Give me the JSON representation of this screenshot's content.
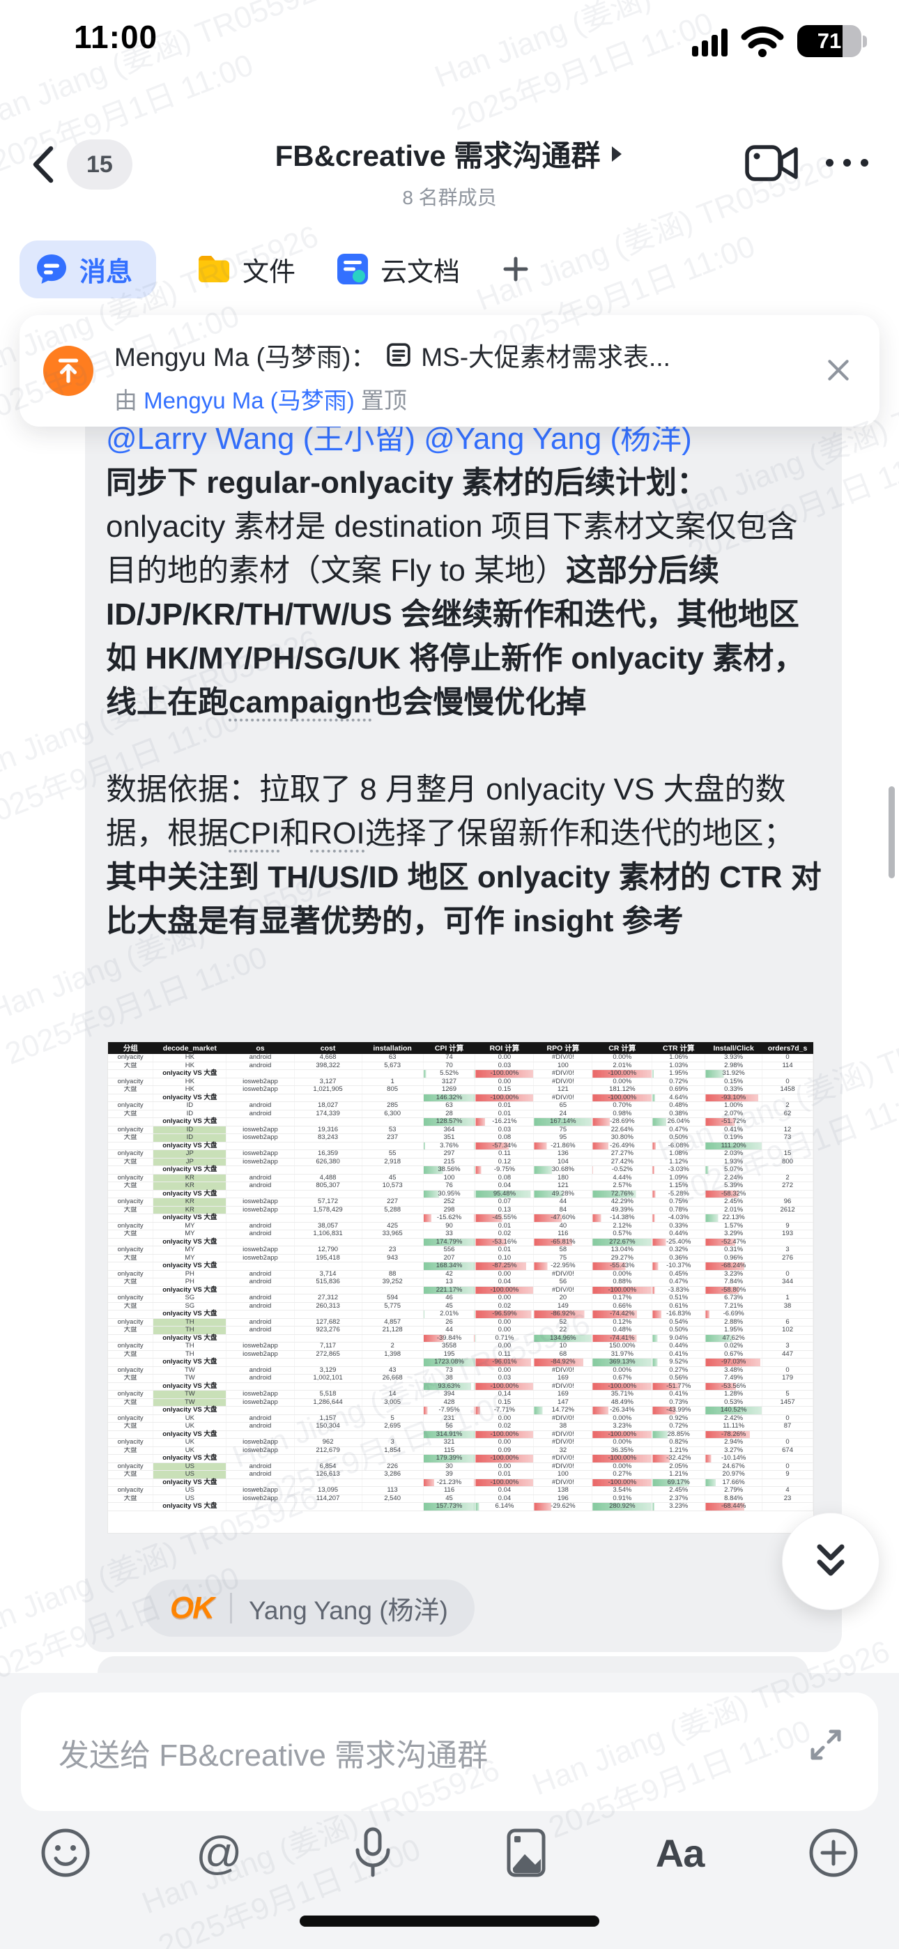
{
  "status_bar": {
    "time": "11:00",
    "battery_percent": "71"
  },
  "nav": {
    "unread_count": "15",
    "title": "FB&creative 需求沟通群",
    "subtitle": "8 名群成员"
  },
  "tabs": [
    {
      "label": "消息",
      "active": true
    },
    {
      "label": "文件",
      "active": false
    },
    {
      "label": "云文档",
      "active": false
    }
  ],
  "pinned": {
    "line1_name": "Mengyu Ma (马梦雨)：",
    "line1_doc": "MS-大促素材需求表...",
    "line2_prefix": "由 ",
    "line2_link": "Mengyu Ma (马梦雨)",
    "line2_suffix": " 置顶"
  },
  "message": {
    "mention": "@Larry Wang (王小留) @Yang Yang (杨洋)",
    "paragraphs": [
      [
        {
          "t": "同步下 regular-onlyacity 素材的后续计划：",
          "b": true,
          "br": true
        },
        {
          "t": "onlyacity 素材是 destination 项目下素材文案仅包含目的地的素材（文案 Fly to 某地）"
        },
        {
          "t": "这部分后续 ID/JP/KR/TH/TW/US 会继续新作和迭代，其他地区如 HK/MY/PH/SG/UK 将停止新作 onlyacity 素材，线上在跑",
          "b": true
        },
        {
          "t": "campaign",
          "b": true,
          "u": true
        },
        {
          "t": "也会慢慢优化掉",
          "b": true
        }
      ],
      [
        {
          "t": "数据依据：拉取了 8 月整月 onlyacity VS 大盘的数据，根据"
        },
        {
          "t": "CPI",
          "u": true
        },
        {
          "t": "和"
        },
        {
          "t": "ROI",
          "u": true
        },
        {
          "t": "选择了保留新作和迭代的地区；"
        },
        {
          "t": "其中关注到 TH/US/ID 地区 onlyacity 素材的 CTR 对比大盘是有显著优势的，可作 insight 参考",
          "b": true
        }
      ]
    ],
    "reaction": {
      "emoji": "OK",
      "names": "Yang Yang (杨洋)"
    },
    "spreadsheet": {
      "headers": [
        "分组",
        "decode_market",
        "os",
        "cost",
        "installation",
        "CPI 计算",
        "ROI 计算",
        "RPO 计算",
        "CR 计算",
        "CTR 计算",
        "Install/Click",
        "orders7d_s"
      ],
      "row_labels": {
        "a": "onlyacity",
        "b": "大盘",
        "vs": "onlyacity VS 大盘"
      },
      "groups": [
        {
          "market": "HK",
          "os": "android",
          "hl": false,
          "a": [
            "4,668",
            "63",
            "74",
            "0.00",
            "#DIV/0!",
            "0.00%",
            "1.06%",
            "3.93%",
            "0"
          ],
          "b": [
            "398,322",
            "5,673",
            "70",
            "0.03",
            "100",
            "2.01%",
            "1.03%",
            "2.98%",
            "114"
          ],
          "vs": [
            "5.52%",
            "-100.00%",
            "#DIV/0!",
            "-100.00%",
            "1.95%",
            "31.92%"
          ]
        },
        {
          "market": "HK",
          "os": "iosweb2app",
          "hl": false,
          "a": [
            "3,127",
            "1",
            "3127",
            "0.00",
            "#DIV/0!",
            "0.00%",
            "0.72%",
            "0.15%",
            "0"
          ],
          "b": [
            "1,021,905",
            "805",
            "1269",
            "0.15",
            "121",
            "181.12%",
            "0.69%",
            "0.33%",
            "1458"
          ],
          "vs": [
            "146.32%",
            "-100.00%",
            "#DIV/0!",
            "-100.00%",
            "4.64%",
            "-93.10%"
          ]
        },
        {
          "market": "ID",
          "os": "android",
          "hl": false,
          "a": [
            "18,027",
            "285",
            "63",
            "0.01",
            "65",
            "0.70%",
            "0.48%",
            "1.00%",
            "2"
          ],
          "b": [
            "174,339",
            "6,300",
            "28",
            "0.01",
            "24",
            "0.98%",
            "0.38%",
            "2.07%",
            "62"
          ],
          "vs": [
            "128.57%",
            "-16.21%",
            "167.14%",
            "-28.69%",
            "26.04%",
            "-51.72%"
          ]
        },
        {
          "market": "ID",
          "os": "iosweb2app",
          "hl": true,
          "a": [
            "19,316",
            "53",
            "364",
            "0.03",
            "75",
            "22.64%",
            "0.47%",
            "0.41%",
            "12"
          ],
          "b": [
            "83,243",
            "237",
            "351",
            "0.08",
            "95",
            "30.80%",
            "0.50%",
            "0.19%",
            "73"
          ],
          "vs": [
            "3.76%",
            "-57.34%",
            "-21.86%",
            "-26.49%",
            "-6.08%",
            "111.20%"
          ]
        },
        {
          "market": "JP",
          "os": "iosweb2app",
          "hl": true,
          "a": [
            "16,359",
            "55",
            "297",
            "0.11",
            "136",
            "27.27%",
            "1.08%",
            "2.03%",
            "15"
          ],
          "b": [
            "626,380",
            "2,918",
            "215",
            "0.12",
            "104",
            "27.42%",
            "1.12%",
            "1.93%",
            "800"
          ],
          "vs": [
            "38.56%",
            "-9.75%",
            "30.68%",
            "-0.52%",
            "-3.03%",
            "5.07%"
          ]
        },
        {
          "market": "KR",
          "os": "android",
          "hl": true,
          "a": [
            "4,488",
            "45",
            "100",
            "0.08",
            "180",
            "4.44%",
            "1.09%",
            "2.24%",
            "2"
          ],
          "b": [
            "805,307",
            "10,573",
            "76",
            "0.04",
            "121",
            "2.57%",
            "1.15%",
            "5.39%",
            "272"
          ],
          "vs": [
            "30.95%",
            "95.48%",
            "49.28%",
            "72.76%",
            "-5.28%",
            "-58.32%"
          ]
        },
        {
          "market": "KR",
          "os": "iosweb2app",
          "hl": true,
          "a": [
            "57,172",
            "227",
            "252",
            "0.07",
            "44",
            "42.29%",
            "0.75%",
            "2.45%",
            "96"
          ],
          "b": [
            "1,578,429",
            "5,288",
            "298",
            "0.13",
            "84",
            "49.39%",
            "0.78%",
            "2.01%",
            "2612"
          ],
          "vs": [
            "-15.62%",
            "-45.55%",
            "-47.60%",
            "-14.38%",
            "-4.03%",
            "22.13%"
          ]
        },
        {
          "market": "MY",
          "os": "android",
          "hl": false,
          "a": [
            "38,057",
            "425",
            "90",
            "0.01",
            "40",
            "2.12%",
            "0.33%",
            "1.57%",
            "9"
          ],
          "b": [
            "1,106,831",
            "33,965",
            "33",
            "0.02",
            "116",
            "0.57%",
            "0.44%",
            "3.29%",
            "193"
          ],
          "vs": [
            "174.79%",
            "-53.16%",
            "-65.81%",
            "272.67%",
            "-25.40%",
            "-52.47%"
          ]
        },
        {
          "market": "MY",
          "os": "iosweb2app",
          "hl": false,
          "a": [
            "12,790",
            "23",
            "556",
            "0.01",
            "58",
            "13.04%",
            "0.32%",
            "0.31%",
            "3"
          ],
          "b": [
            "195,418",
            "943",
            "207",
            "0.10",
            "75",
            "29.27%",
            "0.36%",
            "0.96%",
            "276"
          ],
          "vs": [
            "168.34%",
            "-87.25%",
            "-22.95%",
            "-55.43%",
            "-10.37%",
            "-68.24%"
          ]
        },
        {
          "market": "PH",
          "os": "android",
          "hl": false,
          "a": [
            "3,714",
            "88",
            "42",
            "0.00",
            "#DIV/0!",
            "0.00%",
            "0.45%",
            "3.23%",
            "0"
          ],
          "b": [
            "515,836",
            "39,252",
            "13",
            "0.04",
            "56",
            "0.88%",
            "0.47%",
            "7.84%",
            "344"
          ],
          "vs": [
            "221.17%",
            "-100.00%",
            "#DIV/0!",
            "-100.00%",
            "-3.83%",
            "-58.80%"
          ]
        },
        {
          "market": "SG",
          "os": "android",
          "hl": false,
          "a": [
            "27,312",
            "594",
            "46",
            "0.00",
            "20",
            "0.17%",
            "0.51%",
            "6.73%",
            "1"
          ],
          "b": [
            "260,313",
            "5,775",
            "45",
            "0.02",
            "149",
            "0.66%",
            "0.61%",
            "7.21%",
            "38"
          ],
          "vs": [
            "2.01%",
            "-96.59%",
            "-86.92%",
            "-74.42%",
            "-16.83%",
            "-6.69%"
          ]
        },
        {
          "market": "TH",
          "os": "android",
          "hl": true,
          "a": [
            "127,682",
            "4,857",
            "26",
            "0.00",
            "52",
            "0.12%",
            "0.54%",
            "2.88%",
            "6"
          ],
          "b": [
            "923,276",
            "21,128",
            "44",
            "0.00",
            "22",
            "0.48%",
            "0.50%",
            "1.95%",
            "102"
          ],
          "vs": [
            "-39.84%",
            "0.71%",
            "134.96%",
            "-74.41%",
            "9.04%",
            "47.62%"
          ]
        },
        {
          "market": "TH",
          "os": "iosweb2app",
          "hl": false,
          "a": [
            "7,117",
            "2",
            "3558",
            "0.00",
            "10",
            "150.00%",
            "0.44%",
            "0.02%",
            "3"
          ],
          "b": [
            "272,865",
            "1,398",
            "195",
            "0.11",
            "68",
            "31.97%",
            "0.41%",
            "0.67%",
            "447"
          ],
          "vs": [
            "1723.08%",
            "-96.01%",
            "-84.92%",
            "369.13%",
            "9.52%",
            "-97.03%"
          ]
        },
        {
          "market": "TW",
          "os": "android",
          "hl": false,
          "a": [
            "3,129",
            "43",
            "73",
            "0.00",
            "#DIV/0!",
            "0.00%",
            "0.27%",
            "3.48%",
            "0"
          ],
          "b": [
            "1,002,101",
            "26,668",
            "38",
            "0.03",
            "169",
            "0.67%",
            "0.56%",
            "7.49%",
            "179"
          ],
          "vs": [
            "93.63%",
            "-100.00%",
            "#DIV/0!",
            "-100.00%",
            "-51.77%",
            "-53.56%"
          ]
        },
        {
          "market": "TW",
          "os": "iosweb2app",
          "hl": true,
          "a": [
            "5,518",
            "14",
            "394",
            "0.14",
            "169",
            "35.71%",
            "0.41%",
            "1.28%",
            "5"
          ],
          "b": [
            "1,286,644",
            "3,005",
            "428",
            "0.15",
            "147",
            "48.49%",
            "0.73%",
            "0.53%",
            "1457"
          ],
          "vs": [
            "-7.95%",
            "-7.71%",
            "14.72%",
            "-26.34%",
            "-43.99%",
            "140.52%"
          ]
        },
        {
          "market": "UK",
          "os": "android",
          "hl": false,
          "a": [
            "1,157",
            "5",
            "231",
            "0.00",
            "#DIV/0!",
            "0.00%",
            "0.92%",
            "2.42%",
            "0"
          ],
          "b": [
            "150,304",
            "2,695",
            "56",
            "0.02",
            "38",
            "3.23%",
            "0.72%",
            "11.11%",
            "87"
          ],
          "vs": [
            "314.91%",
            "-100.00%",
            "#DIV/0!",
            "-100.00%",
            "28.85%",
            "-78.26%"
          ]
        },
        {
          "market": "UK",
          "os": "iosweb2app",
          "hl": false,
          "a": [
            "962",
            "3",
            "321",
            "0.00",
            "#DIV/0!",
            "0.00%",
            "0.82%",
            "2.94%",
            "0"
          ],
          "b": [
            "212,679",
            "1,854",
            "115",
            "0.09",
            "32",
            "36.35%",
            "1.21%",
            "3.27%",
            "674"
          ],
          "vs": [
            "179.39%",
            "-100.00%",
            "#DIV/0!",
            "-100.00%",
            "-32.42%",
            "-10.14%"
          ]
        },
        {
          "market": "US",
          "os": "android",
          "hl": true,
          "a": [
            "6,854",
            "226",
            "30",
            "0.00",
            "#DIV/0!",
            "0.00%",
            "2.05%",
            "24.67%",
            "0"
          ],
          "b": [
            "126,613",
            "3,286",
            "39",
            "0.01",
            "100",
            "0.27%",
            "1.21%",
            "20.97%",
            "9"
          ],
          "vs": [
            "-21.23%",
            "-100.00%",
            "#DIV/0!",
            "-100.00%",
            "69.17%",
            "17.66%"
          ]
        },
        {
          "market": "US",
          "os": "iosweb2app",
          "hl": false,
          "a": [
            "13,095",
            "113",
            "116",
            "0.04",
            "138",
            "3.54%",
            "2.45%",
            "2.79%",
            "4"
          ],
          "b": [
            "114,207",
            "2,540",
            "45",
            "0.04",
            "196",
            "0.91%",
            "2.37%",
            "8.84%",
            "23"
          ],
          "vs": [
            "157.73%",
            "6.14%",
            "-29.62%",
            "280.92%",
            "3.23%",
            "-68.44%"
          ]
        }
      ]
    }
  },
  "composer": {
    "placeholder": "发送给 FB&creative 需求沟通群"
  },
  "watermark": {
    "line1": "Han Jiang (姜涵) TR055926",
    "line2": "2025年9月1日 11:00"
  },
  "colors": {
    "accent_blue": "#3370ff",
    "active_tab_bg": "#dfe8fd",
    "pin_orange": "#ff7d1f",
    "bubble_gray": "#eff0f2",
    "highlight_green": "#c9e0b8"
  }
}
